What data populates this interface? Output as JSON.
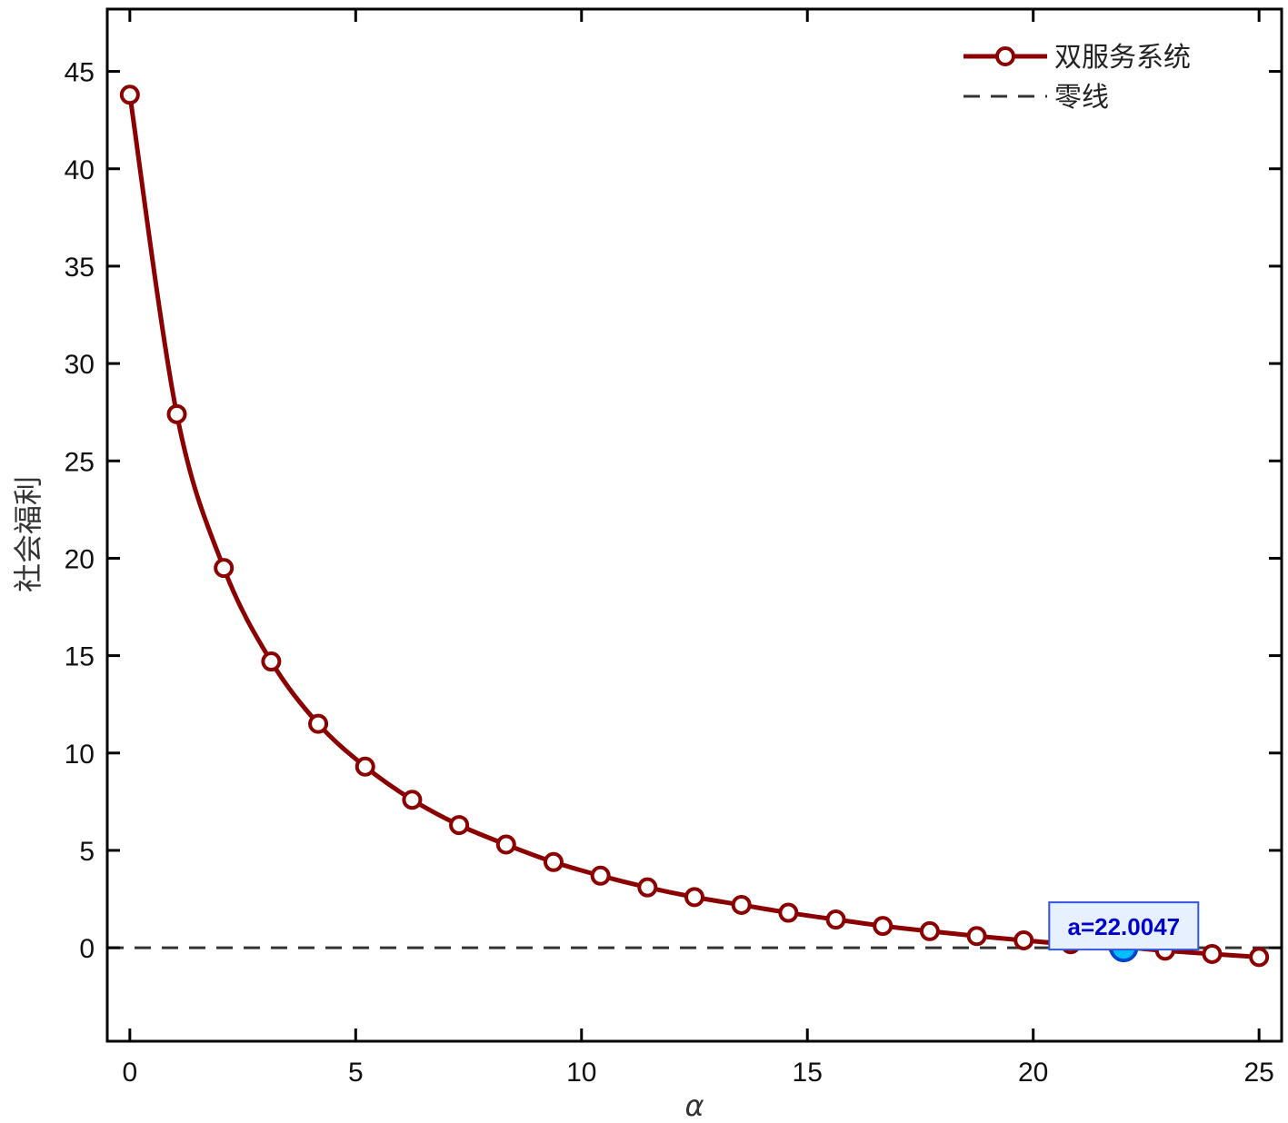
{
  "chart_data": {
    "type": "line",
    "xlabel": "α",
    "ylabel": "社会福利",
    "xlim": [
      -0.5,
      25.5
    ],
    "ylim": [
      -4.8,
      48.2
    ],
    "xticks": [
      0,
      5,
      10,
      15,
      20,
      25
    ],
    "yticks": [
      0,
      5,
      10,
      15,
      20,
      25,
      30,
      35,
      40,
      45
    ],
    "grid": false,
    "legend_position": "top-right",
    "series": [
      {
        "name": "双服务系统",
        "color": "#8b0000",
        "marker": "circle",
        "x": [
          0,
          1.04,
          2.08,
          3.13,
          4.17,
          5.21,
          6.25,
          7.29,
          8.33,
          9.38,
          10.42,
          11.46,
          12.5,
          13.54,
          14.58,
          15.63,
          16.67,
          17.71,
          18.75,
          19.79,
          20.83,
          21.88,
          22.92,
          23.96,
          25.0
        ],
        "y": [
          43.8,
          27.4,
          19.5,
          14.7,
          11.5,
          9.3,
          7.6,
          6.3,
          5.3,
          4.4,
          3.7,
          3.1,
          2.6,
          2.2,
          1.8,
          1.45,
          1.12,
          0.85,
          0.6,
          0.38,
          0.18,
          0.05,
          -0.15,
          -0.32,
          -0.48
        ]
      },
      {
        "name": "零线",
        "color": "#333333",
        "style": "dashed",
        "y_constant": 0
      }
    ],
    "annotations": [
      {
        "text": "a=22.0047",
        "x": 22.0047,
        "y": 0,
        "marker_color": "#00bfff"
      }
    ]
  }
}
